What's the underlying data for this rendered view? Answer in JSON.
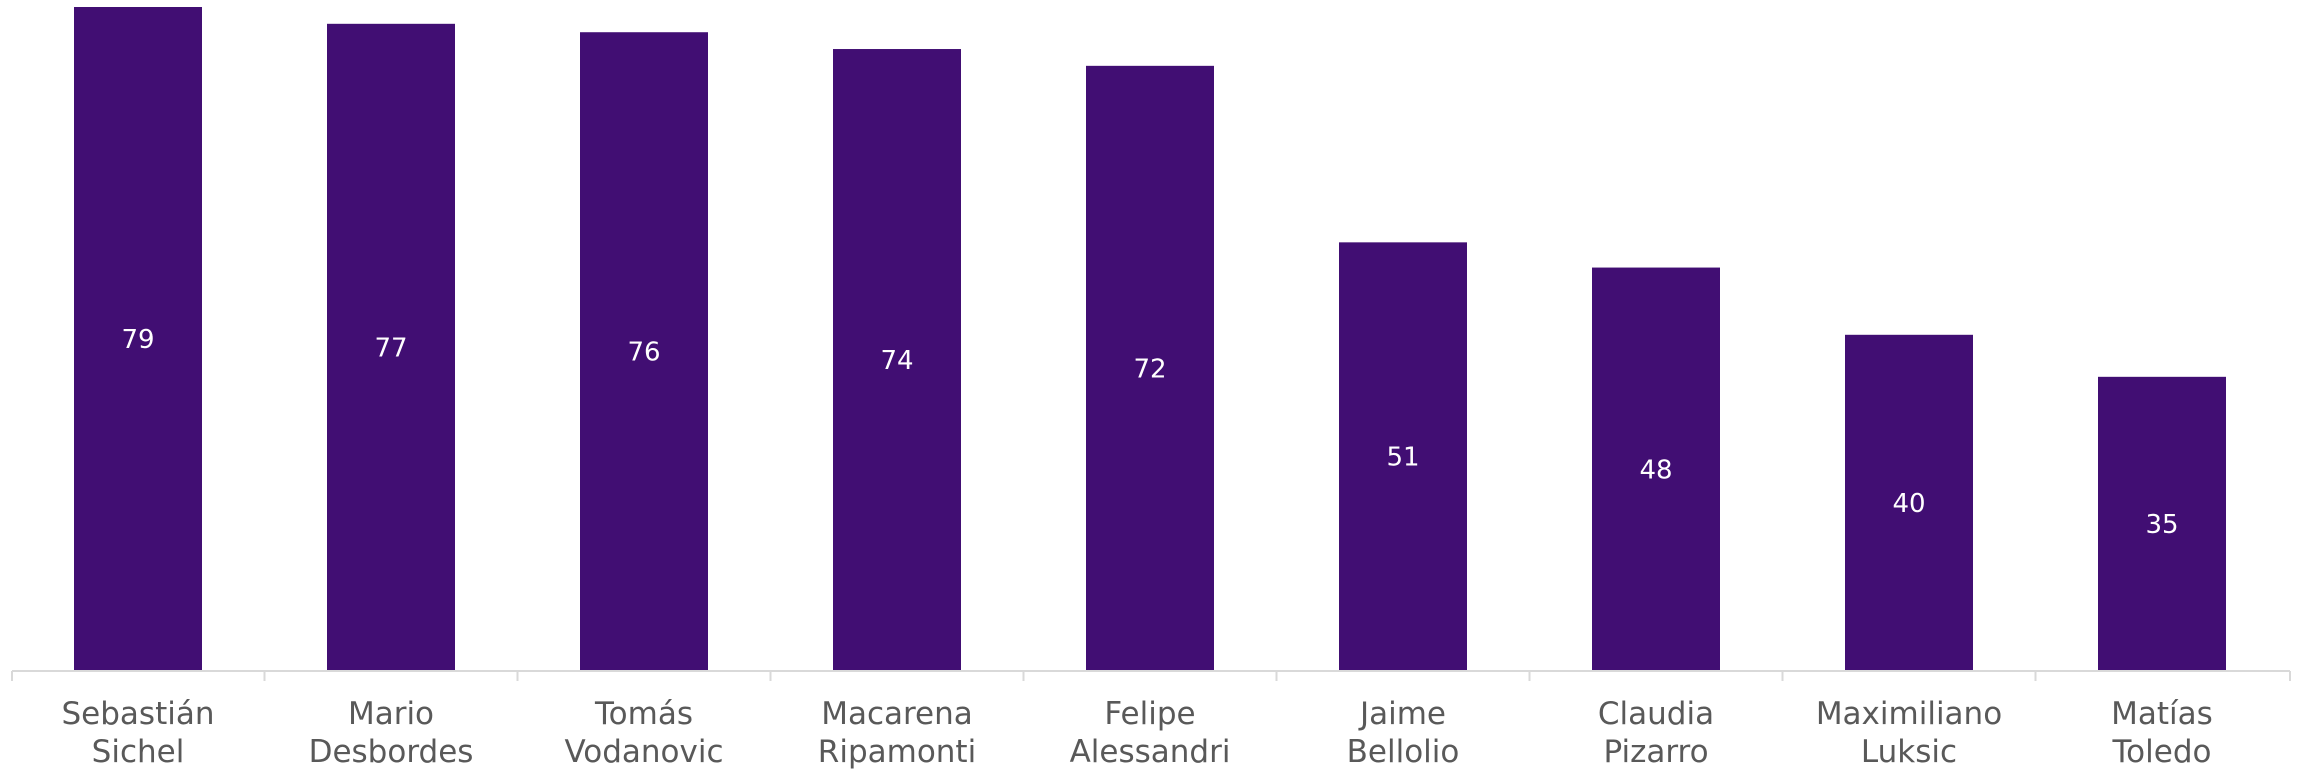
{
  "chart_data": {
    "type": "bar",
    "categories": [
      [
        "Sebastián",
        "Sichel"
      ],
      [
        "Mario",
        "Desbordes"
      ],
      [
        "Tomás",
        "Vodanovic"
      ],
      [
        "Macarena",
        "Ripamonti"
      ],
      [
        "Felipe",
        "Alessandri"
      ],
      [
        "Jaime",
        "Bellolio"
      ],
      [
        "Claudia",
        "Pizarro"
      ],
      [
        "Maximiliano",
        "Luksic"
      ],
      [
        "Matías",
        "Toledo"
      ]
    ],
    "values": [
      79,
      77,
      76,
      74,
      72,
      51,
      48,
      40,
      35
    ],
    "data_labels": [
      "79",
      "77",
      "76",
      "74",
      "72",
      "51",
      "48",
      "40",
      "35"
    ],
    "ylim": [
      0,
      80
    ],
    "grid": false,
    "legend": "none",
    "colors": {
      "bar": "#410e73",
      "data_label": "#ffffff",
      "tick_label": "#595959",
      "axis": "#d9d9d9",
      "background": "#ffffff"
    }
  }
}
